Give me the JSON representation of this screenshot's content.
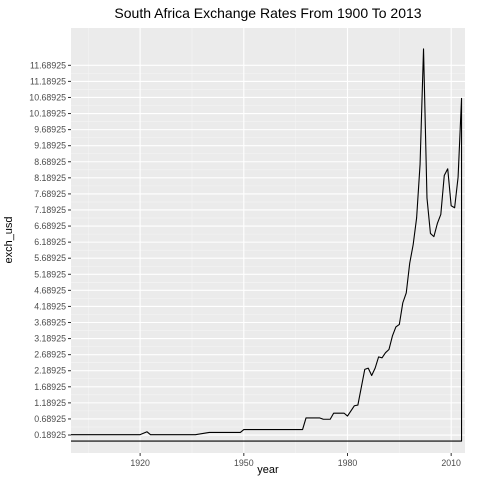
{
  "chart_data": {
    "type": "line",
    "title": "South Africa Exchange Rates From 1900 To 2013",
    "xlabel": "year",
    "ylabel": "exch_usd",
    "xlim": [
      1900,
      2014
    ],
    "ylim": [
      -0.37,
      12.85
    ],
    "x_ticks": [
      1920,
      1950,
      1980,
      2010
    ],
    "x_minor_ticks": [
      1905,
      1935,
      1965,
      1995
    ],
    "y_ticks": [
      0.18925,
      0.68925,
      1.18925,
      1.68925,
      2.18925,
      2.68925,
      3.18925,
      3.68925,
      4.18925,
      4.68925,
      5.18925,
      5.68925,
      6.18925,
      6.68925,
      7.18925,
      7.68925,
      8.18925,
      8.68925,
      9.18925,
      9.68925,
      10.18925,
      10.68925,
      11.18925,
      11.68925
    ],
    "y_tick_labels": [
      "0.18925",
      "0.68925",
      "1.18925",
      "1.68925",
      "2.18925",
      "2.68925",
      "3.18925",
      "3.68925",
      "4.18925",
      "4.68925",
      "5.18925",
      "5.68925",
      "6.18925",
      "6.68925",
      "7.18925",
      "7.68925",
      "8.18925",
      "8.68925",
      "9.18925",
      "9.68925",
      "10.18925",
      "10.68925",
      "11.18925",
      "11.68925"
    ],
    "grid": true,
    "series": [
      {
        "color": "#000000",
        "x": [
          1900,
          1920,
          1922,
          1923,
          1936,
          1940,
          1949,
          1950,
          1955,
          1960,
          1967,
          1968,
          1972,
          1973,
          1975,
          1976,
          1979,
          1980,
          1982,
          1983,
          1985,
          1986,
          1987,
          1988,
          1989,
          1990,
          1991,
          1992,
          1993,
          1994,
          1995,
          1996,
          1997,
          1998,
          1999,
          2000,
          2001,
          2002,
          2003,
          2004,
          2005,
          2006,
          2007,
          2008,
          2009,
          2010,
          2011,
          2012,
          2013,
          2013,
          1900
        ],
        "y": [
          0.2,
          0.2,
          0.29,
          0.2,
          0.2,
          0.27,
          0.27,
          0.36,
          0.36,
          0.36,
          0.36,
          0.72,
          0.72,
          0.68,
          0.68,
          0.87,
          0.87,
          0.78,
          1.1,
          1.12,
          2.23,
          2.27,
          2.04,
          2.27,
          2.62,
          2.59,
          2.75,
          2.85,
          3.27,
          3.55,
          3.63,
          4.3,
          4.61,
          5.53,
          6.11,
          6.94,
          8.61,
          12.2,
          7.56,
          6.46,
          6.36,
          6.77,
          7.05,
          8.26,
          8.47,
          7.32,
          7.26,
          8.21,
          10.66,
          0.0,
          0.0
        ]
      }
    ]
  }
}
